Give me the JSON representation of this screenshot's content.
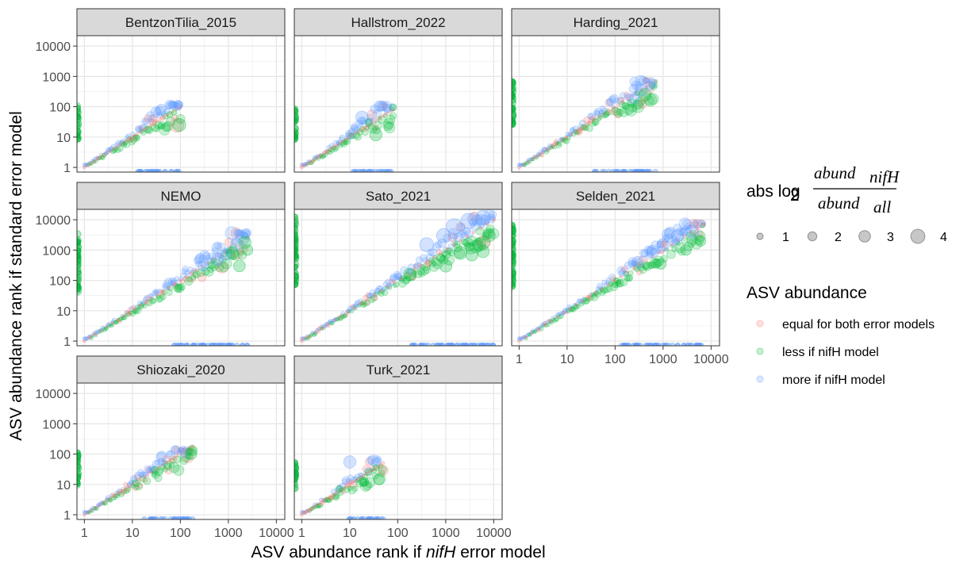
{
  "chart_data": {
    "type": "scatter",
    "xlabel": {
      "prefix": "ASV abundance rank if ",
      "italic": "nifH",
      "suffix": " error model"
    },
    "ylabel": "ASV abundance rank if standard error model",
    "scale": "log10",
    "xlim": [
      0.7,
      15000
    ],
    "ylim": [
      0.7,
      22000
    ],
    "ticks": [
      1,
      10,
      100,
      1000,
      10000
    ],
    "tick_labels": [
      "1",
      "10",
      "100",
      "1000",
      "10000"
    ],
    "grid": true,
    "legend_position": "right",
    "size_legend": {
      "title_prefix": "abs log",
      "title_sub": "2",
      "numerator": "abund",
      "numerator_sub": "nifH",
      "denominator": "abund",
      "denominator_sub": "all",
      "values": [
        1,
        2,
        3,
        4
      ],
      "labels": [
        "1",
        "2",
        "3",
        "4"
      ]
    },
    "color_legend": {
      "title": "ASV abundance",
      "entries": [
        {
          "key": "equal",
          "label": "equal for both error models",
          "color": "#F8766D"
        },
        {
          "key": "less",
          "label": "less if nifH model",
          "color": "#00BA38"
        },
        {
          "key": "more",
          "label": "more if nifH model",
          "color": "#619CFF"
        }
      ]
    },
    "panels": [
      {
        "name": "BentzonTilia_2015",
        "xmax": 100,
        "ymax": 110,
        "clusters": [
          {
            "x": 40,
            "y": 80,
            "s": 2.5,
            "c": "more"
          },
          {
            "x": 90,
            "y": 100,
            "s": 1.5,
            "c": "more"
          },
          {
            "x": 95,
            "y": 25,
            "s": 3.2,
            "c": "less"
          },
          {
            "x": 60,
            "y": 55,
            "s": 1.2,
            "c": "less"
          },
          {
            "x": 75,
            "y": 65,
            "s": 1.0,
            "c": "less"
          }
        ]
      },
      {
        "name": "Hallstrom_2022",
        "xmax": 80,
        "ymax": 100,
        "clusters": [
          {
            "x": 18,
            "y": 45,
            "s": 3.0,
            "c": "more"
          },
          {
            "x": 35,
            "y": 12,
            "s": 3.0,
            "c": "less"
          },
          {
            "x": 10,
            "y": 12,
            "s": 2.0,
            "c": "more"
          },
          {
            "x": 60,
            "y": 90,
            "s": 1.8,
            "c": "more"
          },
          {
            "x": 80,
            "y": 95,
            "s": 1.5,
            "c": "less"
          },
          {
            "x": 25,
            "y": 30,
            "s": 1.5,
            "c": "less"
          }
        ]
      },
      {
        "name": "Harding_2021",
        "xmax": 700,
        "ymax": 700,
        "clusters": [
          {
            "x": 350,
            "y": 350,
            "s": 3.0,
            "c": "more"
          },
          {
            "x": 420,
            "y": 250,
            "s": 3.0,
            "c": "less"
          },
          {
            "x": 250,
            "y": 180,
            "s": 2.5,
            "c": "more"
          },
          {
            "x": 550,
            "y": 500,
            "s": 2.0,
            "c": "more"
          },
          {
            "x": 600,
            "y": 600,
            "s": 1.8,
            "c": "more"
          },
          {
            "x": 300,
            "y": 120,
            "s": 2.2,
            "c": "less"
          }
        ]
      },
      {
        "name": "NEMO",
        "xmax": 2500,
        "ymax": 3500,
        "clusters": [
          {
            "x": 1500,
            "y": 1500,
            "s": 3.0,
            "c": "more"
          },
          {
            "x": 2000,
            "y": 2500,
            "s": 3.2,
            "c": "more"
          },
          {
            "x": 1200,
            "y": 800,
            "s": 3.0,
            "c": "less"
          },
          {
            "x": 2200,
            "y": 1800,
            "s": 3.0,
            "c": "less"
          },
          {
            "x": 2500,
            "y": 1000,
            "s": 2.5,
            "c": "less"
          },
          {
            "x": 600,
            "y": 500,
            "s": 3.0,
            "c": "more"
          },
          {
            "x": 300,
            "y": 300,
            "s": 2.5,
            "c": "more"
          },
          {
            "x": 1700,
            "y": 300,
            "s": 2.8,
            "c": "less"
          },
          {
            "x": 900,
            "y": 700,
            "s": 2.5,
            "c": "more"
          }
        ]
      },
      {
        "name": "Sato_2021",
        "xmax": 10000,
        "ymax": 14000,
        "clusters": [
          {
            "x": 1500,
            "y": 6000,
            "s": 4.0,
            "c": "more"
          },
          {
            "x": 3000,
            "y": 9000,
            "s": 4.0,
            "c": "more"
          },
          {
            "x": 900,
            "y": 3000,
            "s": 3.5,
            "c": "more"
          },
          {
            "x": 6000,
            "y": 12000,
            "s": 3.5,
            "c": "more"
          },
          {
            "x": 400,
            "y": 1500,
            "s": 3.5,
            "c": "more"
          },
          {
            "x": 2000,
            "y": 800,
            "s": 3.2,
            "c": "less"
          },
          {
            "x": 5000,
            "y": 1500,
            "s": 3.2,
            "c": "less"
          },
          {
            "x": 8000,
            "y": 3000,
            "s": 3.0,
            "c": "less"
          },
          {
            "x": 1000,
            "y": 300,
            "s": 3.0,
            "c": "less"
          },
          {
            "x": 3500,
            "y": 700,
            "s": 3.0,
            "c": "less"
          },
          {
            "x": 6000,
            "y": 900,
            "s": 3.0,
            "c": "less"
          },
          {
            "x": 180,
            "y": 160,
            "s": 3.0,
            "c": "less"
          }
        ]
      },
      {
        "name": "Selden_2021",
        "xmax": 7000,
        "ymax": 7000,
        "clusters": [
          {
            "x": 4000,
            "y": 4000,
            "s": 3.2,
            "c": "more"
          },
          {
            "x": 2000,
            "y": 3000,
            "s": 3.0,
            "c": "more"
          },
          {
            "x": 1000,
            "y": 1500,
            "s": 3.0,
            "c": "more"
          },
          {
            "x": 600,
            "y": 900,
            "s": 3.0,
            "c": "more"
          },
          {
            "x": 300,
            "y": 400,
            "s": 2.8,
            "c": "more"
          },
          {
            "x": 6000,
            "y": 2000,
            "s": 2.5,
            "c": "less"
          },
          {
            "x": 3000,
            "y": 1000,
            "s": 2.5,
            "c": "less"
          },
          {
            "x": 900,
            "y": 350,
            "s": 2.5,
            "c": "less"
          }
        ]
      },
      {
        "name": "Shiozaki_2020",
        "xmax": 180,
        "ymax": 130,
        "clusters": [
          {
            "x": 170,
            "y": 100,
            "s": 2.5,
            "c": "less"
          },
          {
            "x": 120,
            "y": 110,
            "s": 2.0,
            "c": "more"
          },
          {
            "x": 150,
            "y": 120,
            "s": 1.5,
            "c": "less"
          },
          {
            "x": 30,
            "y": 30,
            "s": 1.6,
            "c": "less"
          },
          {
            "x": 40,
            "y": 55,
            "s": 1.5,
            "c": "more"
          },
          {
            "x": 12,
            "y": 11,
            "s": 1.5,
            "c": "less"
          }
        ]
      },
      {
        "name": "Turk_2021",
        "xmax": 50,
        "ymax": 60,
        "clusters": [
          {
            "x": 10,
            "y": 55,
            "s": 3.0,
            "c": "more"
          },
          {
            "x": 20,
            "y": 12,
            "s": 2.0,
            "c": "less"
          },
          {
            "x": 25,
            "y": 25,
            "s": 1.5,
            "c": "less"
          },
          {
            "x": 6,
            "y": 7,
            "s": 1.5,
            "c": "less"
          },
          {
            "x": 35,
            "y": 35,
            "s": 1.2,
            "c": "less"
          }
        ]
      }
    ]
  }
}
